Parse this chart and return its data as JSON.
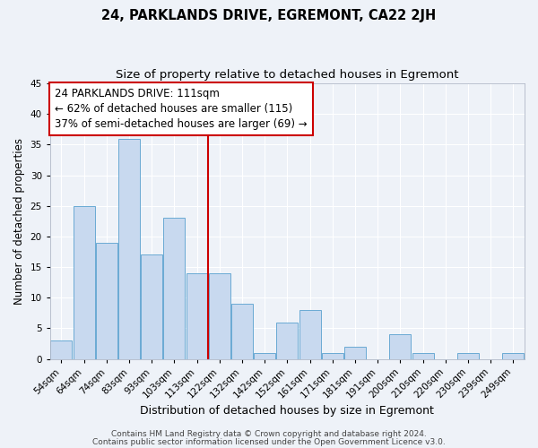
{
  "title": "24, PARKLANDS DRIVE, EGREMONT, CA22 2JH",
  "subtitle": "Size of property relative to detached houses in Egremont",
  "xlabel": "Distribution of detached houses by size in Egremont",
  "ylabel": "Number of detached properties",
  "bar_labels": [
    "54sqm",
    "64sqm",
    "74sqm",
    "83sqm",
    "93sqm",
    "103sqm",
    "113sqm",
    "122sqm",
    "132sqm",
    "142sqm",
    "152sqm",
    "161sqm",
    "171sqm",
    "181sqm",
    "191sqm",
    "200sqm",
    "210sqm",
    "220sqm",
    "230sqm",
    "239sqm",
    "249sqm"
  ],
  "bar_values": [
    3,
    25,
    19,
    36,
    17,
    23,
    14,
    14,
    9,
    1,
    6,
    8,
    1,
    2,
    0,
    4,
    1,
    0,
    1,
    0,
    1
  ],
  "bar_color": "#c8d9ef",
  "bar_edge_color": "#6aaad4",
  "vline_color": "#cc0000",
  "annotation_box_text": "24 PARKLANDS DRIVE: 111sqm\n← 62% of detached houses are smaller (115)\n37% of semi-detached houses are larger (69) →",
  "annotation_box_color": "#cc0000",
  "annotation_box_bg": "#ffffff",
  "ylim": [
    0,
    45
  ],
  "yticks": [
    0,
    5,
    10,
    15,
    20,
    25,
    30,
    35,
    40,
    45
  ],
  "footer_line1": "Contains HM Land Registry data © Crown copyright and database right 2024.",
  "footer_line2": "Contains public sector information licensed under the Open Government Licence v3.0.",
  "background_color": "#eef2f8",
  "grid_color": "#ffffff",
  "title_fontsize": 10.5,
  "subtitle_fontsize": 9.5,
  "xlabel_fontsize": 9,
  "ylabel_fontsize": 8.5,
  "tick_fontsize": 7.5,
  "annotation_fontsize": 8.5,
  "footer_fontsize": 6.5
}
